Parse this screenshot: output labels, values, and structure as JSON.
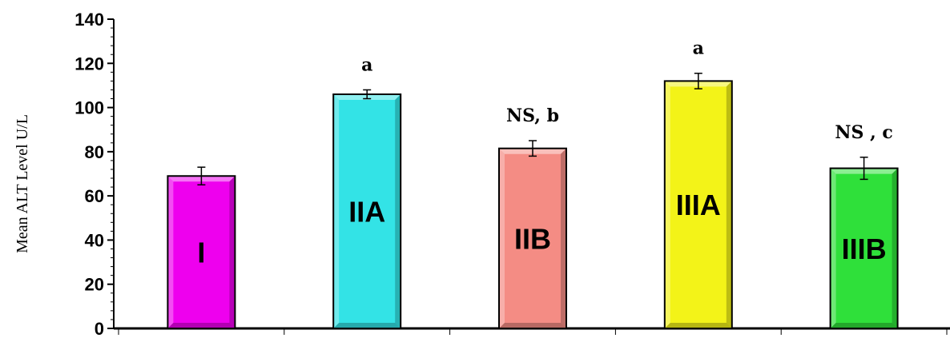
{
  "chart_data": {
    "type": "bar",
    "title": "",
    "xlabel": "",
    "ylabel": "Mean  ALT  Level U/L",
    "ylim": [
      0,
      140
    ],
    "yticks": [
      0,
      20,
      40,
      60,
      80,
      100,
      120,
      140
    ],
    "grid": false,
    "legend": "none",
    "categories": [
      "I",
      "IIA",
      "IIB",
      "IIIA",
      "IIIB"
    ],
    "values": [
      69,
      106,
      81.5,
      112,
      72.5
    ],
    "errors": [
      4,
      2,
      3.5,
      3.5,
      5
    ],
    "bar_labels": [
      "I",
      "IIA",
      "IIB",
      "IIIA",
      "IIIB"
    ],
    "annotations": [
      "",
      "a",
      "NS, b",
      "a",
      "NS , c"
    ],
    "colors": [
      "#EE00EE",
      "#33E3E6",
      "#F48C84",
      "#F3F318",
      "#2FE03A"
    ]
  }
}
